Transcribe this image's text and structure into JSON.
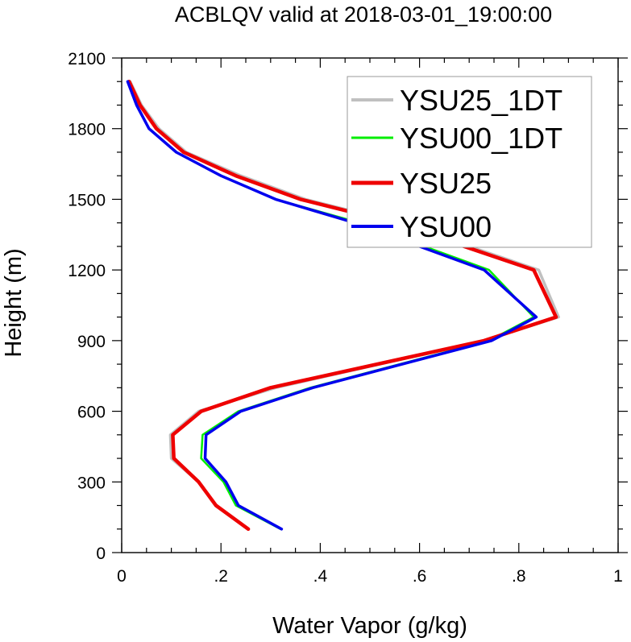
{
  "chart_data": {
    "type": "line",
    "title": "ACBLQV valid at 2018-03-01_19:00:00",
    "xlabel": "Water Vapor (g/kg)",
    "ylabel": "Height (m)",
    "xlim": [
      0,
      1
    ],
    "ylim": [
      0,
      2100
    ],
    "xticks": [
      0,
      0.2,
      0.4,
      0.6,
      0.8,
      1.0
    ],
    "xtick_labels": [
      "0",
      ".2",
      ".4",
      ".6",
      ".8",
      "1"
    ],
    "yticks": [
      0,
      300,
      600,
      900,
      1200,
      1500,
      1800,
      2100
    ],
    "ytick_labels": [
      "0",
      "300",
      "600",
      "900",
      "1200",
      "1500",
      "1800",
      "2100"
    ],
    "grid": false,
    "legend_position": "top-right",
    "series": [
      {
        "name": "YSU25_1DT",
        "color": "#c0c0c0",
        "width": 3.5,
        "x": [
          0.255,
          0.19,
          0.155,
          0.1,
          0.098,
          0.155,
          0.31,
          0.73,
          0.88,
          0.84,
          0.56,
          0.37,
          0.24,
          0.13,
          0.075,
          0.04,
          0.017
        ],
        "y": [
          100,
          200,
          300,
          400,
          500,
          600,
          700,
          900,
          1000,
          1200,
          1400,
          1500,
          1600,
          1700,
          1800,
          1900,
          2000
        ]
      },
      {
        "name": "YSU00_1DT",
        "color": "#00ee00",
        "width": 2.5,
        "x": [
          0.32,
          0.23,
          0.205,
          0.16,
          0.163,
          0.235,
          0.38,
          0.74,
          0.83,
          0.74,
          0.48,
          0.31,
          0.2,
          0.11,
          0.055,
          0.03,
          0.012
        ],
        "y": [
          100,
          200,
          300,
          400,
          500,
          600,
          700,
          900,
          1000,
          1200,
          1400,
          1500,
          1600,
          1700,
          1800,
          1900,
          2000
        ]
      },
      {
        "name": "YSU25",
        "color": "#ee0000",
        "width": 4.5,
        "x": [
          0.255,
          0.19,
          0.155,
          0.105,
          0.103,
          0.16,
          0.3,
          0.73,
          0.875,
          0.83,
          0.55,
          0.36,
          0.23,
          0.125,
          0.07,
          0.037,
          0.015
        ],
        "y": [
          100,
          200,
          300,
          400,
          500,
          600,
          700,
          900,
          1000,
          1200,
          1400,
          1500,
          1600,
          1700,
          1800,
          1900,
          2000
        ]
      },
      {
        "name": "YSU00",
        "color": "#0000ee",
        "width": 3.5,
        "x": [
          0.322,
          0.235,
          0.21,
          0.168,
          0.17,
          0.24,
          0.385,
          0.745,
          0.835,
          0.73,
          0.47,
          0.31,
          0.2,
          0.11,
          0.055,
          0.03,
          0.012
        ],
        "y": [
          100,
          200,
          300,
          400,
          500,
          600,
          700,
          900,
          1000,
          1200,
          1400,
          1500,
          1600,
          1700,
          1800,
          1900,
          2000
        ]
      }
    ]
  }
}
